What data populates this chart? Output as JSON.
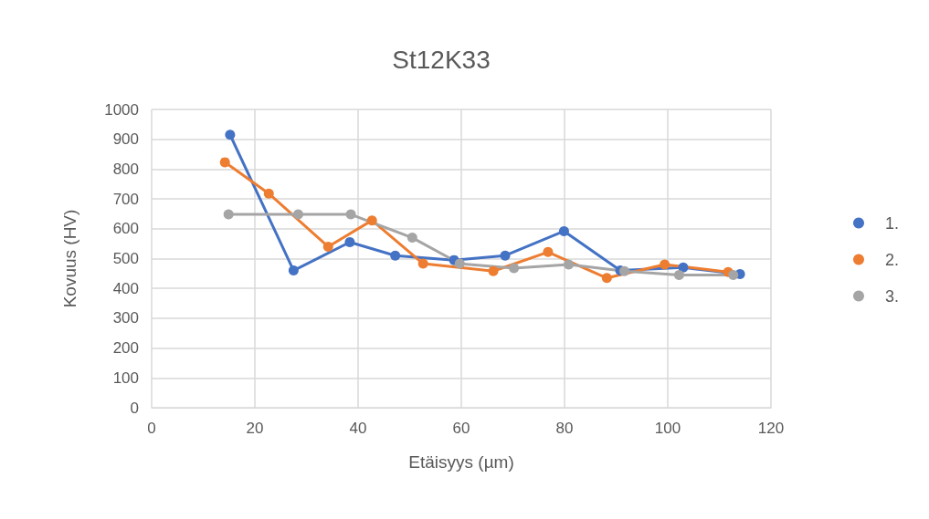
{
  "chart_data": {
    "type": "line",
    "title": "St12K33",
    "xlabel": "Etäisyys (µm)",
    "ylabel": "Kovuus (HV)",
    "xlim": [
      0,
      120
    ],
    "xticks": [
      0,
      20,
      40,
      60,
      80,
      100,
      120
    ],
    "ylim": [
      0,
      1000
    ],
    "yticks": [
      0,
      100,
      200,
      300,
      400,
      500,
      600,
      700,
      800,
      900,
      1000
    ],
    "grid": true,
    "legend": "right",
    "marker": "circle",
    "line_style": "solid",
    "series": [
      {
        "name": "1.",
        "color": "#4472c4",
        "x": [
          15.2,
          27.5,
          38.4,
          47.2,
          58.6,
          68.5,
          79.9,
          90.8,
          103,
          114
        ],
        "values": [
          915,
          460,
          555,
          510,
          495,
          510,
          592,
          460,
          470,
          448
        ]
      },
      {
        "name": "2.",
        "color": "#ed7d31",
        "x": [
          14.2,
          22.7,
          34.2,
          42.7,
          52.6,
          66.2,
          76.8,
          88.2,
          99.4,
          111.7
        ],
        "values": [
          823,
          718,
          540,
          628,
          483,
          458,
          522,
          435,
          480,
          455
        ]
      },
      {
        "name": "3.",
        "color": "#a5a5a5",
        "x": [
          14.9,
          28.4,
          38.6,
          50.5,
          59.7,
          70.2,
          80.8,
          91.6,
          102.2,
          112.7
        ],
        "values": [
          648,
          648,
          648,
          570,
          483,
          468,
          480,
          458,
          445,
          445
        ]
      }
    ]
  }
}
